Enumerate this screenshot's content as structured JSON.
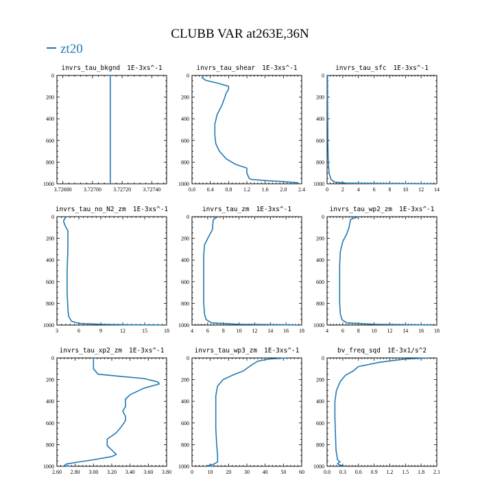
{
  "figure": {
    "title": "CLUBB VAR at263E,36N",
    "legend": {
      "label": "zt20",
      "color": "#1f77b4",
      "placement": "top-left"
    }
  },
  "chart_data": [
    {
      "type": "line",
      "title": "invrs_tau_bkgnd",
      "units": "1E-3xs^-1",
      "xlim": [
        3.72676,
        3.7275
      ],
      "xticks": [
        3.7268,
        3.727,
        3.7272,
        3.7274
      ],
      "xticklabels": [
        "3.72680",
        "3.72700",
        "3.72720",
        "3.72740"
      ],
      "ylim": [
        0,
        1000
      ],
      "yticks": [
        0,
        200,
        400,
        600,
        800,
        1000
      ],
      "y_inverted": true,
      "series": [
        {
          "name": "zt20",
          "points": [
            [
              3.72712,
              0
            ],
            [
              3.72712,
              1000
            ]
          ]
        }
      ]
    },
    {
      "type": "line",
      "title": "invrs_tau_shear",
      "units": "1E-3xs^-1",
      "xlim": [
        0,
        2.4
      ],
      "xticks": [
        0,
        0.4,
        0.8,
        1.2,
        1.6,
        2.0,
        2.4
      ],
      "xticklabels": [
        "0.0",
        "0.4",
        "0.8",
        "1.2",
        "1.6",
        "2.0",
        "2.4"
      ],
      "ylim": [
        0,
        1000
      ],
      "yticks": [
        0,
        200,
        400,
        600,
        800,
        1000
      ],
      "y_inverted": true,
      "series": [
        {
          "name": "zt20",
          "points": [
            [
              0.26,
              0
            ],
            [
              0.22,
              20
            ],
            [
              0.3,
              45
            ],
            [
              0.55,
              70
            ],
            [
              0.8,
              100
            ],
            [
              0.8,
              130
            ],
            [
              0.75,
              160
            ],
            [
              0.72,
              200
            ],
            [
              0.65,
              280
            ],
            [
              0.55,
              360
            ],
            [
              0.5,
              450
            ],
            [
              0.5,
              550
            ],
            [
              0.52,
              630
            ],
            [
              0.6,
              700
            ],
            [
              0.75,
              770
            ],
            [
              0.95,
              820
            ],
            [
              1.2,
              855
            ],
            [
              1.2,
              900
            ],
            [
              1.25,
              950
            ],
            [
              1.3,
              960
            ],
            [
              1.6,
              970
            ],
            [
              2.0,
              980
            ],
            [
              2.3,
              990
            ],
            [
              2.35,
              1000
            ]
          ]
        }
      ]
    },
    {
      "type": "line",
      "title": "invrs_tau_sfc",
      "units": "1E-3xs^-1",
      "xlim": [
        0,
        14
      ],
      "xticks": [
        0,
        2,
        4,
        6,
        8,
        10,
        12,
        14
      ],
      "xticklabels": [
        "0",
        "2",
        "4",
        "6",
        "8",
        "10",
        "12",
        "14"
      ],
      "ylim": [
        0,
        1000
      ],
      "yticks": [
        0,
        200,
        400,
        600,
        800,
        1000
      ],
      "y_inverted": true,
      "series": [
        {
          "name": "zt20",
          "points": [
            [
              0.05,
              0
            ],
            [
              0.06,
              200
            ],
            [
              0.08,
              400
            ],
            [
              0.1,
              600
            ],
            [
              0.15,
              800
            ],
            [
              0.25,
              900
            ],
            [
              0.5,
              960
            ],
            [
              1.0,
              985
            ],
            [
              2.5,
              995
            ],
            [
              13.5,
              1000
            ]
          ]
        }
      ]
    },
    {
      "type": "line",
      "title": "invrs_tau_no_N2_zm",
      "units": "1E-3xs^-1",
      "xlim": [
        3,
        18
      ],
      "xticks": [
        3,
        6,
        9,
        12,
        15,
        18
      ],
      "xticklabels": [
        "3",
        "6",
        "9",
        "12",
        "15",
        "18"
      ],
      "ylim": [
        0,
        1000
      ],
      "yticks": [
        0,
        200,
        400,
        600,
        800,
        1000
      ],
      "y_inverted": true,
      "series": [
        {
          "name": "zt20",
          "points": [
            [
              4.2,
              0
            ],
            [
              3.9,
              40
            ],
            [
              4.1,
              80
            ],
            [
              4.5,
              130
            ],
            [
              4.5,
              300
            ],
            [
              4.4,
              500
            ],
            [
              4.4,
              700
            ],
            [
              4.5,
              850
            ],
            [
              4.6,
              920
            ],
            [
              5.0,
              965
            ],
            [
              6.0,
              985
            ],
            [
              9.0,
              993
            ],
            [
              13.0,
              998
            ],
            [
              17.5,
              1000
            ]
          ]
        }
      ]
    },
    {
      "type": "line",
      "title": "invrs_tau_zm",
      "units": "1E-3xs^-1",
      "xlim": [
        4,
        18
      ],
      "xticks": [
        4,
        6,
        8,
        10,
        12,
        14,
        16,
        18
      ],
      "xticklabels": [
        "4",
        "6",
        "8",
        "10",
        "12",
        "14",
        "16",
        "18"
      ],
      "ylim": [
        0,
        1000
      ],
      "yticks": [
        0,
        200,
        400,
        600,
        800,
        1000
      ],
      "y_inverted": true,
      "series": [
        {
          "name": "zt20",
          "points": [
            [
              7.2,
              0
            ],
            [
              6.7,
              30
            ],
            [
              6.6,
              120
            ],
            [
              6.0,
              200
            ],
            [
              5.6,
              260
            ],
            [
              5.5,
              350
            ],
            [
              5.5,
              500
            ],
            [
              5.5,
              650
            ],
            [
              5.5,
              800
            ],
            [
              5.6,
              900
            ],
            [
              5.8,
              950
            ],
            [
              6.5,
              980
            ],
            [
              10.0,
              993
            ],
            [
              17.5,
              1000
            ]
          ]
        }
      ]
    },
    {
      "type": "line",
      "title": "invrs_tau_wp2_zm",
      "units": "1E-3xs^-1",
      "xlim": [
        4,
        18
      ],
      "xticks": [
        4,
        6,
        8,
        10,
        12,
        14,
        16,
        18
      ],
      "xticklabels": [
        "4",
        "6",
        "8",
        "10",
        "12",
        "14",
        "16",
        "18"
      ],
      "ylim": [
        0,
        1000
      ],
      "yticks": [
        0,
        200,
        400,
        600,
        800,
        1000
      ],
      "y_inverted": true,
      "series": [
        {
          "name": "zt20",
          "points": [
            [
              8.0,
              0
            ],
            [
              7.0,
              25
            ],
            [
              6.8,
              100
            ],
            [
              6.5,
              160
            ],
            [
              6.0,
              230
            ],
            [
              5.7,
              320
            ],
            [
              5.6,
              450
            ],
            [
              5.6,
              650
            ],
            [
              5.6,
              800
            ],
            [
              5.7,
              900
            ],
            [
              5.9,
              950
            ],
            [
              6.5,
              980
            ],
            [
              10.0,
              993
            ],
            [
              17.5,
              1000
            ]
          ]
        }
      ]
    },
    {
      "type": "line",
      "title": "invrs_tau_xp2_zm",
      "units": "1E-3xs^-1",
      "xlim": [
        2.6,
        3.8
      ],
      "xticks": [
        2.6,
        2.8,
        3.0,
        3.2,
        3.4,
        3.6,
        3.8
      ],
      "xticklabels": [
        "2.60",
        "2.80",
        "3.00",
        "3.20",
        "3.40",
        "3.60",
        "3.80"
      ],
      "ylim": [
        0,
        1000
      ],
      "yticks": [
        0,
        200,
        400,
        600,
        800,
        1000
      ],
      "y_inverted": true,
      "series": [
        {
          "name": "zt20",
          "points": [
            [
              3.0,
              0
            ],
            [
              3.0,
              100
            ],
            [
              3.05,
              150
            ],
            [
              3.3,
              170
            ],
            [
              3.55,
              190
            ],
            [
              3.7,
              220
            ],
            [
              3.72,
              240
            ],
            [
              3.55,
              280
            ],
            [
              3.4,
              340
            ],
            [
              3.35,
              380
            ],
            [
              3.35,
              450
            ],
            [
              3.32,
              490
            ],
            [
              3.35,
              540
            ],
            [
              3.35,
              580
            ],
            [
              3.3,
              640
            ],
            [
              3.25,
              690
            ],
            [
              3.15,
              750
            ],
            [
              3.15,
              810
            ],
            [
              3.2,
              850
            ],
            [
              3.25,
              890
            ],
            [
              3.2,
              910
            ],
            [
              3.0,
              940
            ],
            [
              2.8,
              965
            ],
            [
              2.7,
              980
            ],
            [
              2.68,
              995
            ],
            [
              2.75,
              1000
            ]
          ]
        }
      ]
    },
    {
      "type": "line",
      "title": "invrs_tau_wp3_zm",
      "units": "1E-3xs^-1",
      "xlim": [
        0,
        60
      ],
      "xticks": [
        0,
        10,
        20,
        30,
        40,
        50,
        60
      ],
      "xticklabels": [
        "0",
        "10",
        "20",
        "30",
        "40",
        "50",
        "60"
      ],
      "ylim": [
        0,
        1000
      ],
      "yticks": [
        0,
        200,
        400,
        600,
        800,
        1000
      ],
      "y_inverted": true,
      "series": [
        {
          "name": "zt20",
          "points": [
            [
              52,
              0
            ],
            [
              42,
              10
            ],
            [
              36,
              30
            ],
            [
              33,
              60
            ],
            [
              28,
              120
            ],
            [
              22,
              160
            ],
            [
              17,
              200
            ],
            [
              14,
              260
            ],
            [
              13,
              350
            ],
            [
              13,
              500
            ],
            [
              13,
              650
            ],
            [
              13.5,
              800
            ],
            [
              14,
              900
            ],
            [
              14,
              960
            ],
            [
              12,
              980
            ],
            [
              10,
              990
            ],
            [
              8,
              995
            ],
            [
              11,
              1000
            ]
          ]
        }
      ]
    },
    {
      "type": "line",
      "title": "bv_freq_sqd",
      "units": "1E-3x1/s^2",
      "xlim": [
        0,
        2.1
      ],
      "xticks": [
        0,
        0.3,
        0.6,
        0.9,
        1.2,
        1.5,
        1.8,
        2.1
      ],
      "xticklabels": [
        "0.0",
        "0.3",
        "0.6",
        "0.9",
        "1.2",
        "1.5",
        "1.8",
        "2.1"
      ],
      "ylim": [
        0,
        1000
      ],
      "yticks": [
        0,
        200,
        400,
        600,
        800,
        1000
      ],
      "y_inverted": true,
      "series": [
        {
          "name": "zt20",
          "points": [
            [
              1.95,
              0
            ],
            [
              1.5,
              10
            ],
            [
              1.0,
              40
            ],
            [
              0.6,
              80
            ],
            [
              0.5,
              120
            ],
            [
              0.35,
              160
            ],
            [
              0.25,
              220
            ],
            [
              0.18,
              300
            ],
            [
              0.15,
              400
            ],
            [
              0.15,
              550
            ],
            [
              0.16,
              700
            ],
            [
              0.17,
              850
            ],
            [
              0.2,
              940
            ],
            [
              0.25,
              960
            ],
            [
              0.2,
              975
            ],
            [
              0.22,
              985
            ],
            [
              0.35,
              1000
            ]
          ]
        }
      ]
    }
  ]
}
